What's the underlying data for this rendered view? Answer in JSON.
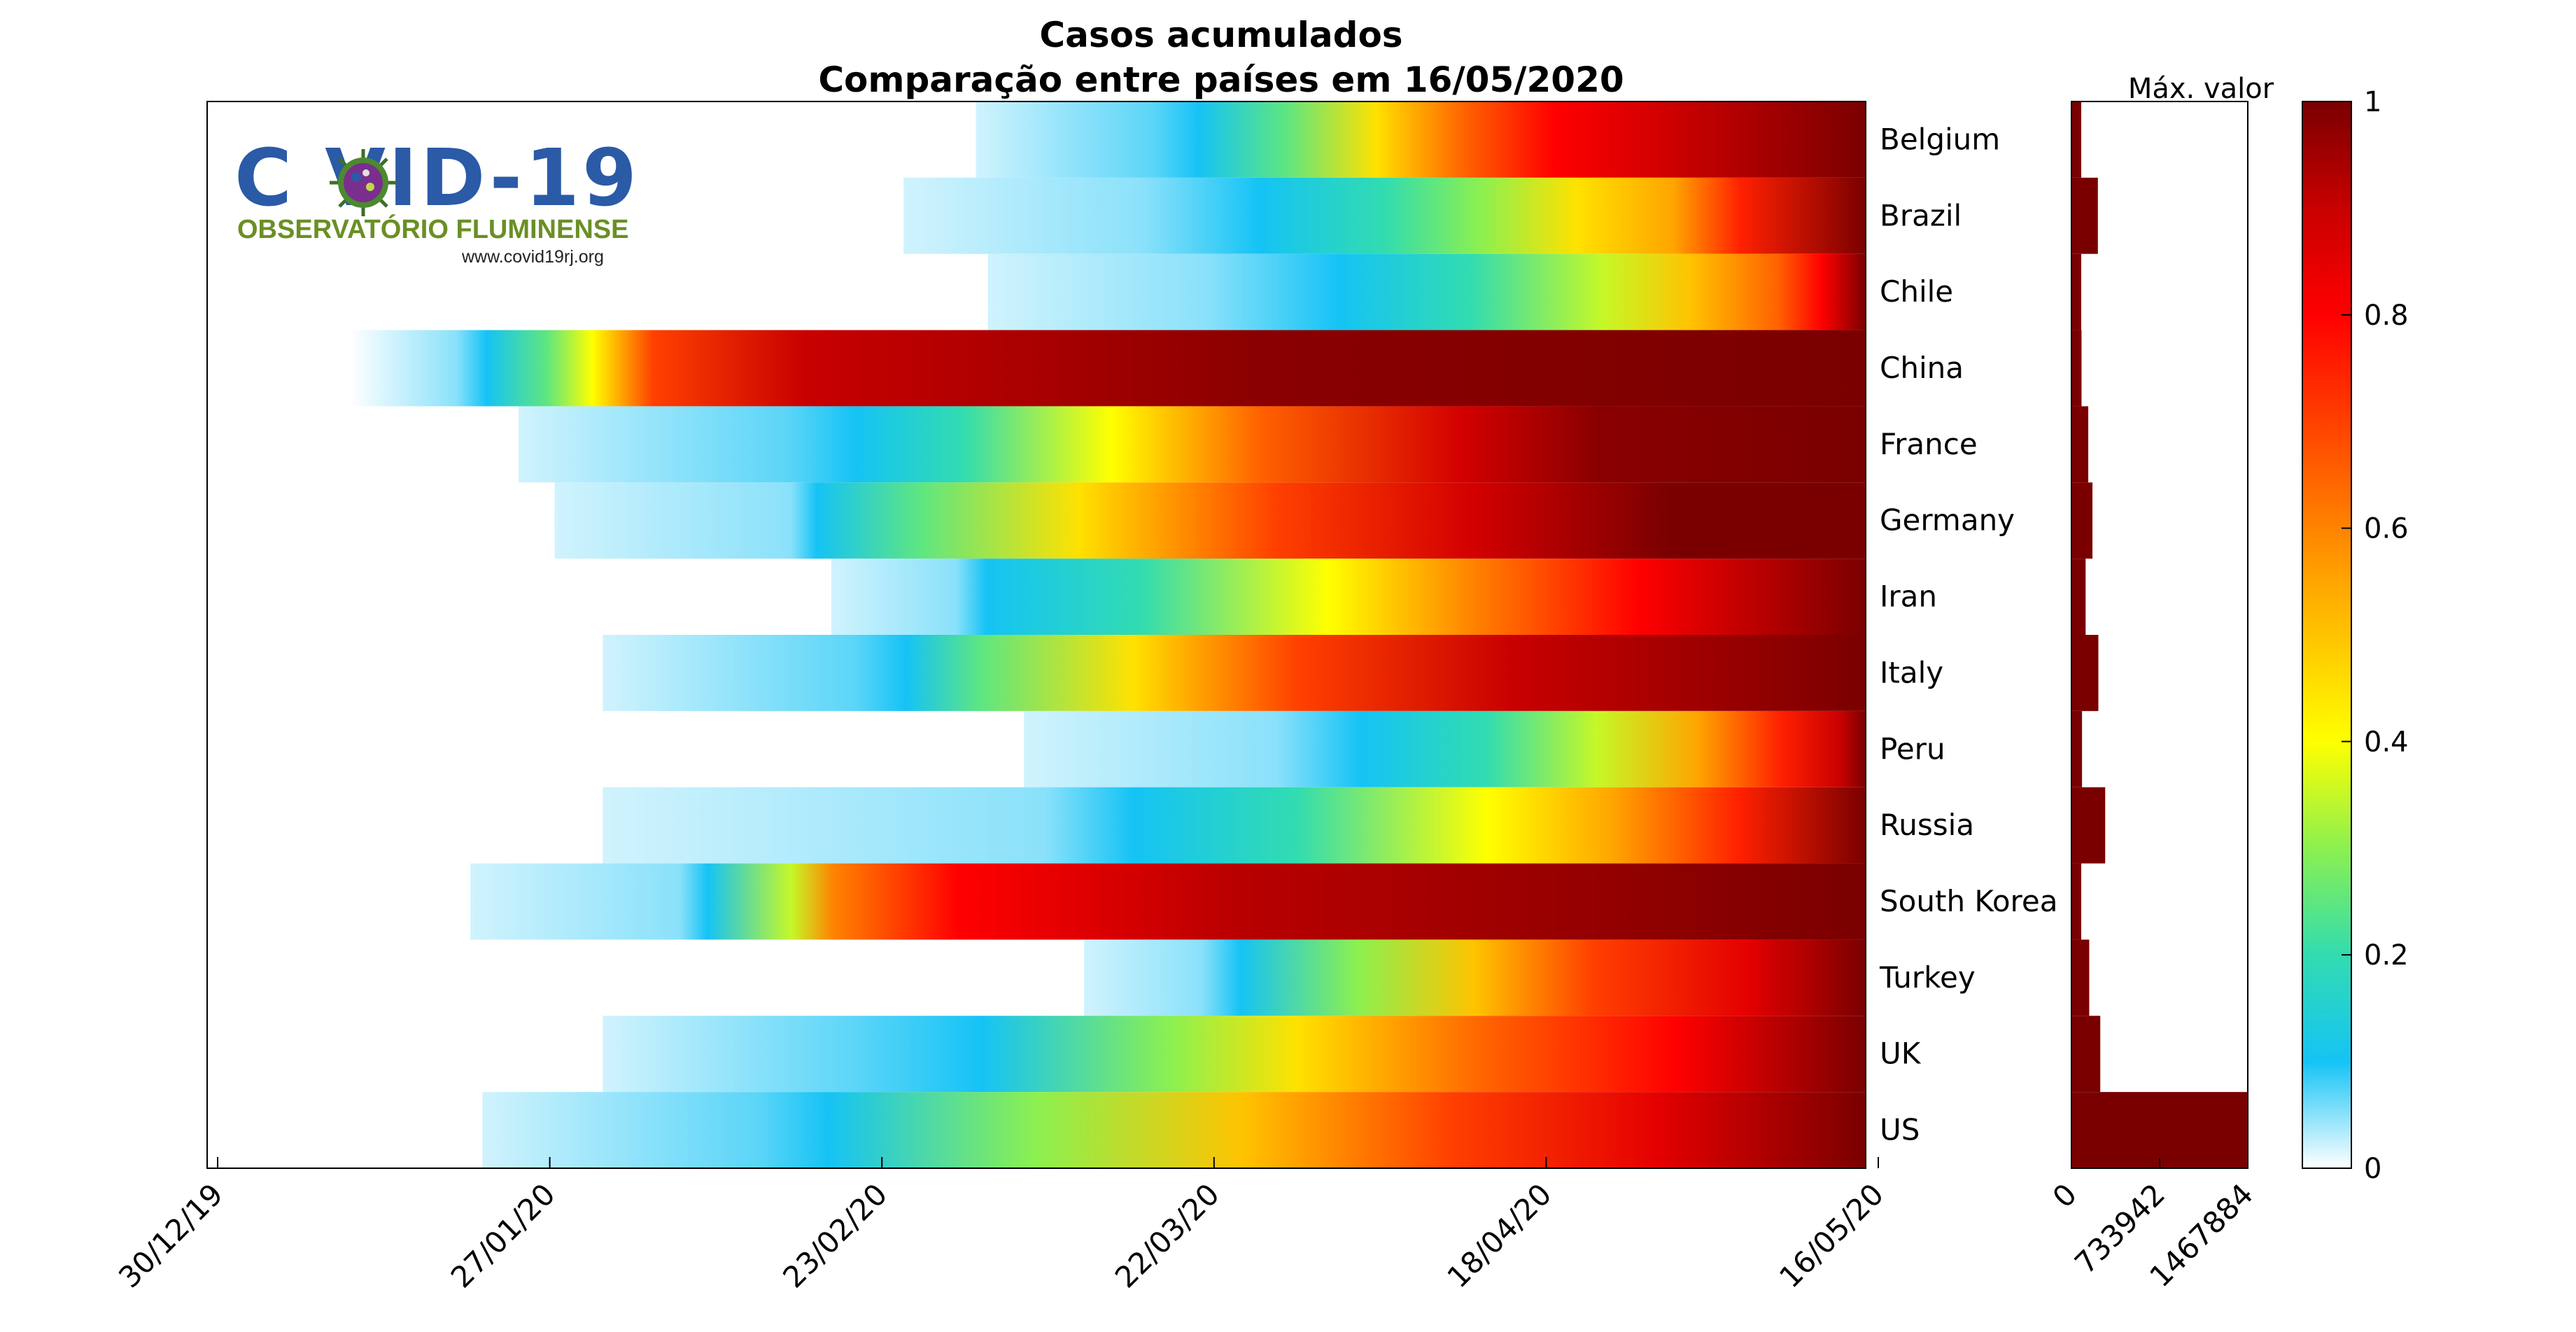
{
  "title": "Casos acumulados",
  "subtitle": "Comparação entre países em 16/05/2020",
  "logo": {
    "main": "C  VID-19",
    "sub": "OBSERVATÓRIO FLUMINENSE",
    "url": "www.covid19rj.org"
  },
  "chart_data": [
    {
      "type": "heatmap",
      "x_tick_labels": [
        "30/12/19",
        "27/01/20",
        "23/02/20",
        "22/03/20",
        "18/04/20",
        "16/05/20"
      ],
      "x_range": [
        "30/12/19",
        "16/05/20"
      ],
      "categories": [
        "Belgium",
        "Brazil",
        "Chile",
        "China",
        "France",
        "Germany",
        "Iran",
        "Italy",
        "Peru",
        "Russia",
        "South Korea",
        "Turkey",
        "UK",
        "US"
      ],
      "rows": [
        {
          "name": "Belgium",
          "start": "02/03/20",
          "stops": [
            [
              0,
              0.02
            ],
            [
              0.2,
              0.07
            ],
            [
              0.25,
              0.1
            ],
            [
              0.35,
              0.25
            ],
            [
              0.45,
              0.45
            ],
            [
              0.55,
              0.65
            ],
            [
              0.65,
              0.8
            ],
            [
              1,
              1
            ]
          ]
        },
        {
          "name": "Brazil",
          "start": "25/02/20",
          "stops": [
            [
              0,
              0.02
            ],
            [
              0.25,
              0.05
            ],
            [
              0.37,
              0.1
            ],
            [
              0.5,
              0.2
            ],
            [
              0.6,
              0.3
            ],
            [
              0.7,
              0.45
            ],
            [
              0.8,
              0.55
            ],
            [
              0.87,
              0.75
            ],
            [
              1,
              1
            ]
          ]
        },
        {
          "name": "Chile",
          "start": "03/03/20",
          "stops": [
            [
              0,
              0.02
            ],
            [
              0.25,
              0.05
            ],
            [
              0.4,
              0.1
            ],
            [
              0.55,
              0.2
            ],
            [
              0.7,
              0.35
            ],
            [
              0.8,
              0.5
            ],
            [
              0.9,
              0.65
            ],
            [
              0.95,
              0.8
            ],
            [
              1,
              1
            ]
          ]
        },
        {
          "name": "China",
          "start": "10/01/20",
          "stops": [
            [
              0,
              0.0
            ],
            [
              0.07,
              0.05
            ],
            [
              0.09,
              0.1
            ],
            [
              0.13,
              0.25
            ],
            [
              0.16,
              0.4
            ],
            [
              0.2,
              0.7
            ],
            [
              0.3,
              0.9
            ],
            [
              0.6,
              0.98
            ],
            [
              1,
              1
            ]
          ]
        },
        {
          "name": "France",
          "start": "24/01/20",
          "stops": [
            [
              0,
              0.02
            ],
            [
              0.2,
              0.07
            ],
            [
              0.25,
              0.1
            ],
            [
              0.33,
              0.2
            ],
            [
              0.44,
              0.4
            ],
            [
              0.55,
              0.65
            ],
            [
              0.7,
              0.88
            ],
            [
              0.8,
              0.98
            ],
            [
              1,
              1
            ]
          ]
        },
        {
          "name": "Germany",
          "start": "27/01/20",
          "stops": [
            [
              0,
              0.02
            ],
            [
              0.18,
              0.05
            ],
            [
              0.2,
              0.1
            ],
            [
              0.28,
              0.25
            ],
            [
              0.4,
              0.45
            ],
            [
              0.55,
              0.7
            ],
            [
              0.7,
              0.88
            ],
            [
              0.85,
              1
            ],
            [
              1,
              1
            ]
          ]
        },
        {
          "name": "Iran",
          "start": "19/02/20",
          "stops": [
            [
              0,
              0.02
            ],
            [
              0.12,
              0.05
            ],
            [
              0.15,
              0.1
            ],
            [
              0.3,
              0.2
            ],
            [
              0.48,
              0.4
            ],
            [
              0.62,
              0.6
            ],
            [
              0.78,
              0.8
            ],
            [
              1,
              1
            ]
          ]
        },
        {
          "name": "Italy",
          "start": "31/01/20",
          "stops": [
            [
              0,
              0.02
            ],
            [
              0.2,
              0.07
            ],
            [
              0.24,
              0.1
            ],
            [
              0.3,
              0.25
            ],
            [
              0.42,
              0.45
            ],
            [
              0.55,
              0.7
            ],
            [
              0.72,
              0.9
            ],
            [
              1,
              1
            ]
          ]
        },
        {
          "name": "Peru",
          "start": "06/03/20",
          "stops": [
            [
              0,
              0.02
            ],
            [
              0.3,
              0.05
            ],
            [
              0.4,
              0.1
            ],
            [
              0.55,
              0.2
            ],
            [
              0.68,
              0.35
            ],
            [
              0.8,
              0.55
            ],
            [
              0.9,
              0.75
            ],
            [
              0.97,
              0.9
            ],
            [
              1,
              1
            ]
          ]
        },
        {
          "name": "Russia",
          "start": "31/01/20",
          "stops": [
            [
              0,
              0.02
            ],
            [
              0.35,
              0.05
            ],
            [
              0.42,
              0.1
            ],
            [
              0.55,
              0.2
            ],
            [
              0.7,
              0.4
            ],
            [
              0.8,
              0.55
            ],
            [
              0.9,
              0.75
            ],
            [
              1,
              1
            ]
          ]
        },
        {
          "name": "South Korea",
          "start": "20/01/20",
          "stops": [
            [
              0,
              0.02
            ],
            [
              0.15,
              0.05
            ],
            [
              0.17,
              0.1
            ],
            [
              0.23,
              0.35
            ],
            [
              0.26,
              0.6
            ],
            [
              0.35,
              0.8
            ],
            [
              0.55,
              0.92
            ],
            [
              1,
              1
            ]
          ]
        },
        {
          "name": "Turkey",
          "start": "11/03/20",
          "stops": [
            [
              0,
              0.02
            ],
            [
              0.15,
              0.05
            ],
            [
              0.2,
              0.1
            ],
            [
              0.35,
              0.3
            ],
            [
              0.5,
              0.5
            ],
            [
              0.65,
              0.7
            ],
            [
              0.85,
              0.85
            ],
            [
              1,
              1
            ]
          ]
        },
        {
          "name": "UK",
          "start": "31/01/20",
          "stops": [
            [
              0,
              0.02
            ],
            [
              0.2,
              0.07
            ],
            [
              0.3,
              0.1
            ],
            [
              0.45,
              0.3
            ],
            [
              0.55,
              0.45
            ],
            [
              0.7,
              0.65
            ],
            [
              0.85,
              0.8
            ],
            [
              1,
              1
            ]
          ]
        },
        {
          "name": "US",
          "start": "21/01/20",
          "stops": [
            [
              0,
              0.02
            ],
            [
              0.2,
              0.07
            ],
            [
              0.25,
              0.1
            ],
            [
              0.4,
              0.3
            ],
            [
              0.55,
              0.5
            ],
            [
              0.7,
              0.7
            ],
            [
              0.85,
              0.85
            ],
            [
              1,
              1
            ]
          ]
        }
      ]
    },
    {
      "type": "bar",
      "orientation": "horizontal",
      "xlabel": "Máx. valor",
      "x_tick_labels": [
        "0",
        "733942",
        "1467884"
      ],
      "xlim": [
        0,
        1467884
      ],
      "categories": [
        "Belgium",
        "Brazil",
        "Chile",
        "China",
        "France",
        "Germany",
        "Iran",
        "Italy",
        "Peru",
        "Russia",
        "South Korea",
        "Turkey",
        "UK",
        "US"
      ],
      "values": [
        55000,
        220000,
        43000,
        84000,
        140000,
        175000,
        118000,
        224000,
        88000,
        281000,
        11000,
        148000,
        240000,
        1467884
      ]
    },
    {
      "type": "colorbar",
      "ylim": [
        0,
        1
      ],
      "tick_labels": [
        "0",
        "0.2",
        "0.4",
        "0.6",
        "0.8",
        "1"
      ],
      "colors": [
        "#ffffff",
        "#15c3f5",
        "#40e0a0",
        "#ffff00",
        "#ff8000",
        "#ff0000",
        "#7a0000"
      ]
    }
  ]
}
